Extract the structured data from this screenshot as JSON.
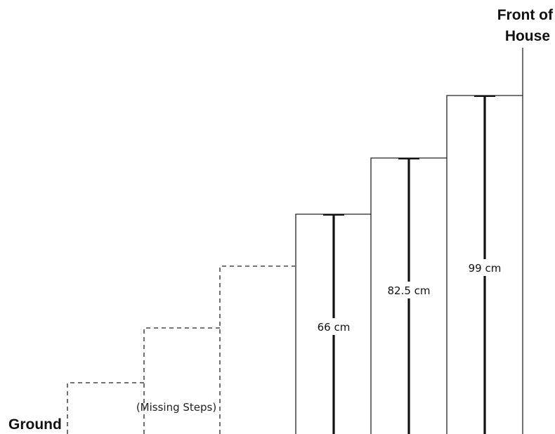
{
  "labels": {
    "front_of_house": [
      "Front of",
      "House"
    ],
    "ground": "Ground",
    "missing_steps": "(Missing Steps)"
  },
  "steps": [
    {
      "height": "66 cm"
    },
    {
      "height": "82.5 cm"
    },
    {
      "height": "99 cm"
    }
  ],
  "colors": {
    "line": "#222222",
    "background": "#ffffff"
  }
}
